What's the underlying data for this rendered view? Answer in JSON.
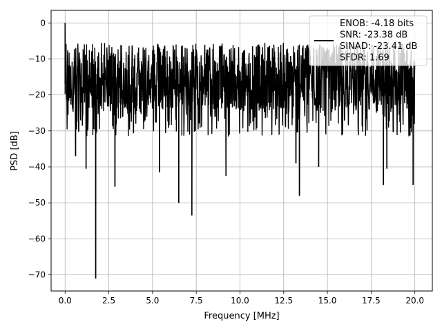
{
  "chart_data": {
    "type": "line",
    "title": "",
    "xlabel": "Frequency [MHz]",
    "ylabel": "PSD [dB]",
    "xlim": [
      -0.8,
      21.0
    ],
    "ylim": [
      -74.5,
      3.5
    ],
    "xticks": [
      0.0,
      2.5,
      5.0,
      7.5,
      10.0,
      12.5,
      15.0,
      17.5,
      20.0
    ],
    "xtick_labels": [
      "0.0",
      "2.5",
      "5.0",
      "7.5",
      "10.0",
      "12.5",
      "15.0",
      "17.5",
      "20.0"
    ],
    "yticks": [
      0,
      -10,
      -20,
      -30,
      -40,
      -50,
      -60,
      -70
    ],
    "ytick_labels": [
      "0",
      "−10",
      "−20",
      "−30",
      "−40",
      "−50",
      "−60",
      "−70"
    ],
    "grid": true,
    "legend_position": "top-right",
    "series": [
      {
        "name": "ENOB: -4.18 bits\nSNR: -23.38 dB\nSINAD: -23.41 dB\nSFDR: 1.69",
        "color": "#000000",
        "x_range": [
          0.0,
          20.0
        ],
        "spikes": [
          {
            "x": 0.0,
            "y": 0.0
          },
          {
            "x": 0.05,
            "y": -6.0
          },
          {
            "x": 0.6,
            "y": -37.0
          },
          {
            "x": 1.2,
            "y": -40.5
          },
          {
            "x": 1.75,
            "y": -71.0
          },
          {
            "x": 2.85,
            "y": -45.5
          },
          {
            "x": 5.4,
            "y": -41.5
          },
          {
            "x": 6.5,
            "y": -50.0
          },
          {
            "x": 7.25,
            "y": -53.5
          },
          {
            "x": 9.2,
            "y": -42.5
          },
          {
            "x": 13.2,
            "y": -39.0
          },
          {
            "x": 13.4,
            "y": -48.0
          },
          {
            "x": 14.5,
            "y": -40.0
          },
          {
            "x": 18.2,
            "y": -45.0
          },
          {
            "x": 18.4,
            "y": -40.5
          },
          {
            "x": 19.9,
            "y": -45.0
          }
        ],
        "envelope": {
          "upper": [
            -5.5,
            -9.5
          ],
          "lower": [
            -22.0,
            -38.0
          ],
          "center": -17.0
        }
      }
    ]
  }
}
